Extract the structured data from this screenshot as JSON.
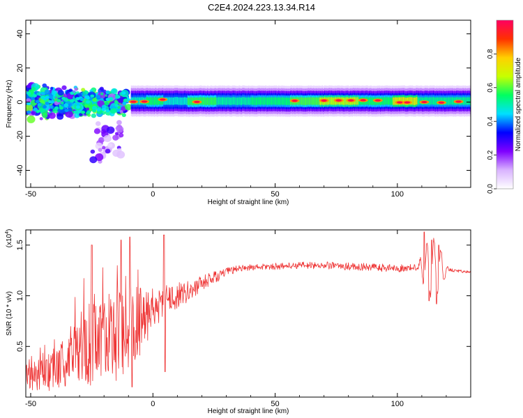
{
  "page_title": "C2E4.2024.223.13.34.R14",
  "chart_data": [
    {
      "type": "heatmap",
      "name": "spectrogram",
      "xlabel": "Height of straight line (km)",
      "ylabel": "Frequency (Hz)",
      "xlim": [
        -52,
        130
      ],
      "ylim": [
        -50,
        48
      ],
      "x_ticks": [
        -50,
        0,
        50,
        100
      ],
      "x_tick_labels": [
        "-50",
        "0",
        "50",
        "100"
      ],
      "y_ticks": [
        40,
        20,
        0,
        -20,
        -40
      ],
      "y_tick_labels": [
        "40",
        "20",
        "0",
        "-20",
        "-40"
      ],
      "colorbar": {
        "label": "Normalized spectral amplitude",
        "range": [
          0,
          1
        ],
        "ticks": [
          0.0,
          0.2,
          0.4,
          0.6,
          0.8
        ],
        "tick_labels": [
          "0.0",
          "0.2",
          "0.4",
          "0.6",
          "0.8"
        ],
        "colors": [
          "#ffffff",
          "#d9b3ff",
          "#7f00ff",
          "#0000ff",
          "#00e0ff",
          "#00ff60",
          "#c8ff00",
          "#ffd000",
          "#ff3000",
          "#ff0060"
        ]
      },
      "band_levels": [
        {
          "from": -8,
          "to": -3,
          "level": 0.62
        },
        {
          "from": -3,
          "to": 4,
          "level": 0.7
        },
        {
          "from": 4,
          "to": 14,
          "level": 0.6
        },
        {
          "from": 14,
          "to": 26,
          "level": 0.72
        },
        {
          "from": 26,
          "to": 40,
          "level": 0.64
        },
        {
          "from": 40,
          "to": 56,
          "level": 0.68
        },
        {
          "from": 56,
          "to": 68,
          "level": 0.74
        },
        {
          "from": 68,
          "to": 84,
          "level": 0.82
        },
        {
          "from": 84,
          "to": 98,
          "level": 0.7
        },
        {
          "from": 98,
          "to": 108,
          "level": 0.88
        },
        {
          "from": 108,
          "to": 130,
          "level": 0.66
        }
      ],
      "hot_spots": [
        {
          "x": -8,
          "f": 0.2
        },
        {
          "x": -3.5,
          "f": 0.3
        },
        {
          "x": 4,
          "f": 1.5
        },
        {
          "x": 18,
          "f": 0.1
        },
        {
          "x": 58,
          "f": 0.8
        },
        {
          "x": 70,
          "f": 0.9
        },
        {
          "x": 76,
          "f": 1.0
        },
        {
          "x": 81,
          "f": 1.0
        },
        {
          "x": 86,
          "f": 1.1
        },
        {
          "x": 92,
          "f": 1.0
        },
        {
          "x": 101,
          "f": -0.2
        },
        {
          "x": 104,
          "f": -0.2
        },
        {
          "x": 111,
          "f": 0.0
        },
        {
          "x": 118,
          "f": -0.3
        },
        {
          "x": 125,
          "f": 0.3
        }
      ],
      "scatter_spread_hz": {
        "near_field": 12,
        "max_extent": -35
      }
    },
    {
      "type": "line",
      "name": "snr",
      "xlabel": "Height of straight line (km)",
      "ylabel": "SNR (10 * v/v)",
      "y_multiplier": "(x10",
      "y_multiplier_exp": "4",
      "y_multiplier_close": ")",
      "xlim": [
        -52,
        130
      ],
      "ylim": [
        0.0,
        1.65
      ],
      "x_ticks": [
        -50,
        0,
        50,
        100
      ],
      "x_tick_labels": [
        "-50",
        "0",
        "50",
        "100"
      ],
      "y_ticks": [
        0.5,
        1.0,
        1.5
      ],
      "y_tick_labels": [
        "0.5",
        "1.0",
        "1.5"
      ],
      "color": "#ee3333",
      "trend": [
        {
          "x": -52,
          "y": 0.18
        },
        {
          "x": -40,
          "y": 0.25
        },
        {
          "x": -30,
          "y": 0.42
        },
        {
          "x": -20,
          "y": 0.55
        },
        {
          "x": -12,
          "y": 0.62
        },
        {
          "x": -5,
          "y": 0.75
        },
        {
          "x": 0,
          "y": 0.86
        },
        {
          "x": 5,
          "y": 0.95
        },
        {
          "x": 10,
          "y": 1.0
        },
        {
          "x": 15,
          "y": 1.05
        },
        {
          "x": 20,
          "y": 1.12
        },
        {
          "x": 25,
          "y": 1.18
        },
        {
          "x": 30,
          "y": 1.23
        },
        {
          "x": 35,
          "y": 1.27
        },
        {
          "x": 40,
          "y": 1.28
        },
        {
          "x": 50,
          "y": 1.29
        },
        {
          "x": 60,
          "y": 1.3
        },
        {
          "x": 70,
          "y": 1.3
        },
        {
          "x": 80,
          "y": 1.29
        },
        {
          "x": 90,
          "y": 1.28
        },
        {
          "x": 100,
          "y": 1.27
        },
        {
          "x": 108,
          "y": 1.28
        },
        {
          "x": 112,
          "y": 1.28
        },
        {
          "x": 120,
          "y": 1.26
        },
        {
          "x": 130,
          "y": 1.23
        }
      ],
      "noise": [
        {
          "x": -52,
          "amp": 0.12
        },
        {
          "x": -30,
          "amp": 0.3
        },
        {
          "x": -20,
          "amp": 0.45
        },
        {
          "x": -10,
          "amp": 0.45
        },
        {
          "x": 0,
          "amp": 0.2
        },
        {
          "x": 8,
          "amp": 0.14
        },
        {
          "x": 20,
          "amp": 0.08
        },
        {
          "x": 35,
          "amp": 0.03
        },
        {
          "x": 100,
          "amp": 0.04
        },
        {
          "x": 109,
          "amp": 0.03
        },
        {
          "x": 110,
          "amp": 0.03
        },
        {
          "x": 121,
          "amp": 0.02
        },
        {
          "x": 130,
          "amp": 0.01
        }
      ],
      "peaks": [
        {
          "x": -25,
          "y": 1.5
        },
        {
          "x": -13,
          "y": 1.55
        },
        {
          "x": -9.5,
          "y": 1.58
        },
        {
          "x": 4.5,
          "y": 1.6
        },
        {
          "x": 111,
          "y": 1.63
        },
        {
          "x": 114,
          "y": 1.55
        },
        {
          "x": 117,
          "y": 1.5
        }
      ],
      "dips": [
        {
          "x": -8.5,
          "y": 0.1
        },
        {
          "x": 5,
          "y": 0.25
        },
        {
          "x": 113,
          "y": 0.95
        },
        {
          "x": 116,
          "y": 0.92
        }
      ]
    }
  ]
}
